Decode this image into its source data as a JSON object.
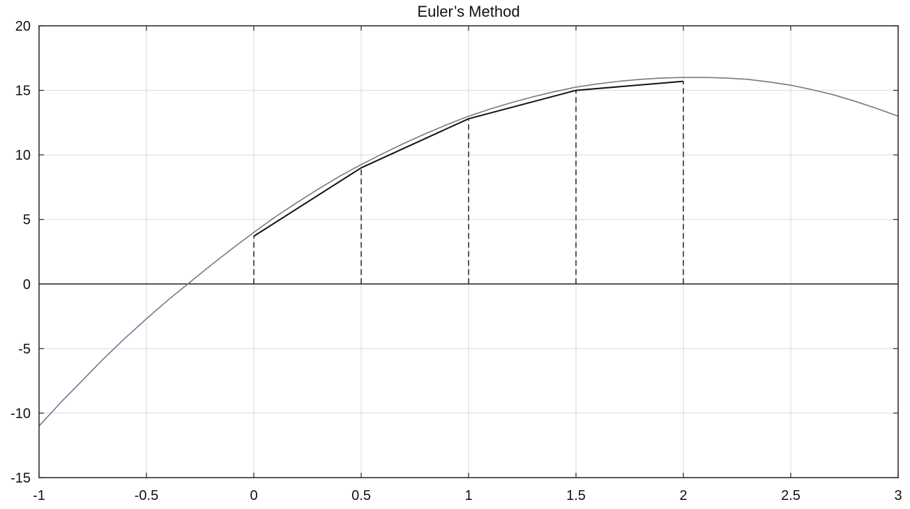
{
  "chart_data": {
    "type": "line",
    "title": "Euler’s Method",
    "xlabel": "",
    "ylabel": "",
    "xlim": [
      -1,
      3
    ],
    "ylim": [
      -15,
      20
    ],
    "grid": true,
    "x_ticks": [
      -1,
      -0.5,
      0,
      0.5,
      1,
      1.5,
      2,
      2.5,
      3
    ],
    "x_tick_labels": [
      "-1",
      "-0.5",
      "0",
      "0.5",
      "1",
      "1.5",
      "2",
      "2.5",
      "3"
    ],
    "y_ticks": [
      20,
      15,
      10,
      5,
      0,
      -5,
      -10,
      -15
    ],
    "y_tick_labels": [
      "20",
      "15",
      "10",
      "5",
      "0",
      "-5",
      "-10",
      "-15"
    ],
    "series": [
      {
        "color": "#6b7b8c",
        "style": "solid",
        "x": [
          -1,
          -0.9,
          -0.8,
          -0.7,
          -0.6,
          -0.5,
          -0.4,
          -0.3,
          -0.2,
          -0.1,
          0,
          0.1,
          0.2,
          0.3,
          0.4,
          0.5,
          0.6,
          0.7,
          0.8,
          0.9,
          1,
          1.1,
          1.2,
          1.3,
          1.4,
          1.5,
          1.6,
          1.7,
          1.8,
          1.9,
          2,
          2.1,
          2.2,
          2.3,
          2.4,
          2.5,
          2.6,
          2.7,
          2.8,
          2.9,
          3
        ],
        "y": [
          -11,
          -9.2,
          -7.5,
          -5.8,
          -4.2,
          -2.7,
          -1.25,
          0.1,
          1.45,
          2.75,
          4,
          5.2,
          6.3,
          7.35,
          8.35,
          9.25,
          10.1,
          10.9,
          11.65,
          12.35,
          13,
          13.55,
          14.05,
          14.5,
          14.9,
          15.25,
          15.5,
          15.7,
          15.85,
          15.95,
          16,
          16,
          15.95,
          15.85,
          15.65,
          15.4,
          15.05,
          14.65,
          14.15,
          13.6,
          13
        ]
      },
      {
        "color": "#111111",
        "style": "solid",
        "x": [
          0,
          0.5,
          1,
          1.5,
          2
        ],
        "y": [
          3.7,
          9,
          12.8,
          15,
          15.7
        ]
      },
      {
        "color": "#222222",
        "style": "dashed",
        "type": "vertical-drops",
        "x": [
          0,
          0.5,
          1,
          1.5,
          2
        ],
        "y": [
          3.7,
          9,
          12.8,
          15,
          15.7
        ]
      }
    ]
  }
}
